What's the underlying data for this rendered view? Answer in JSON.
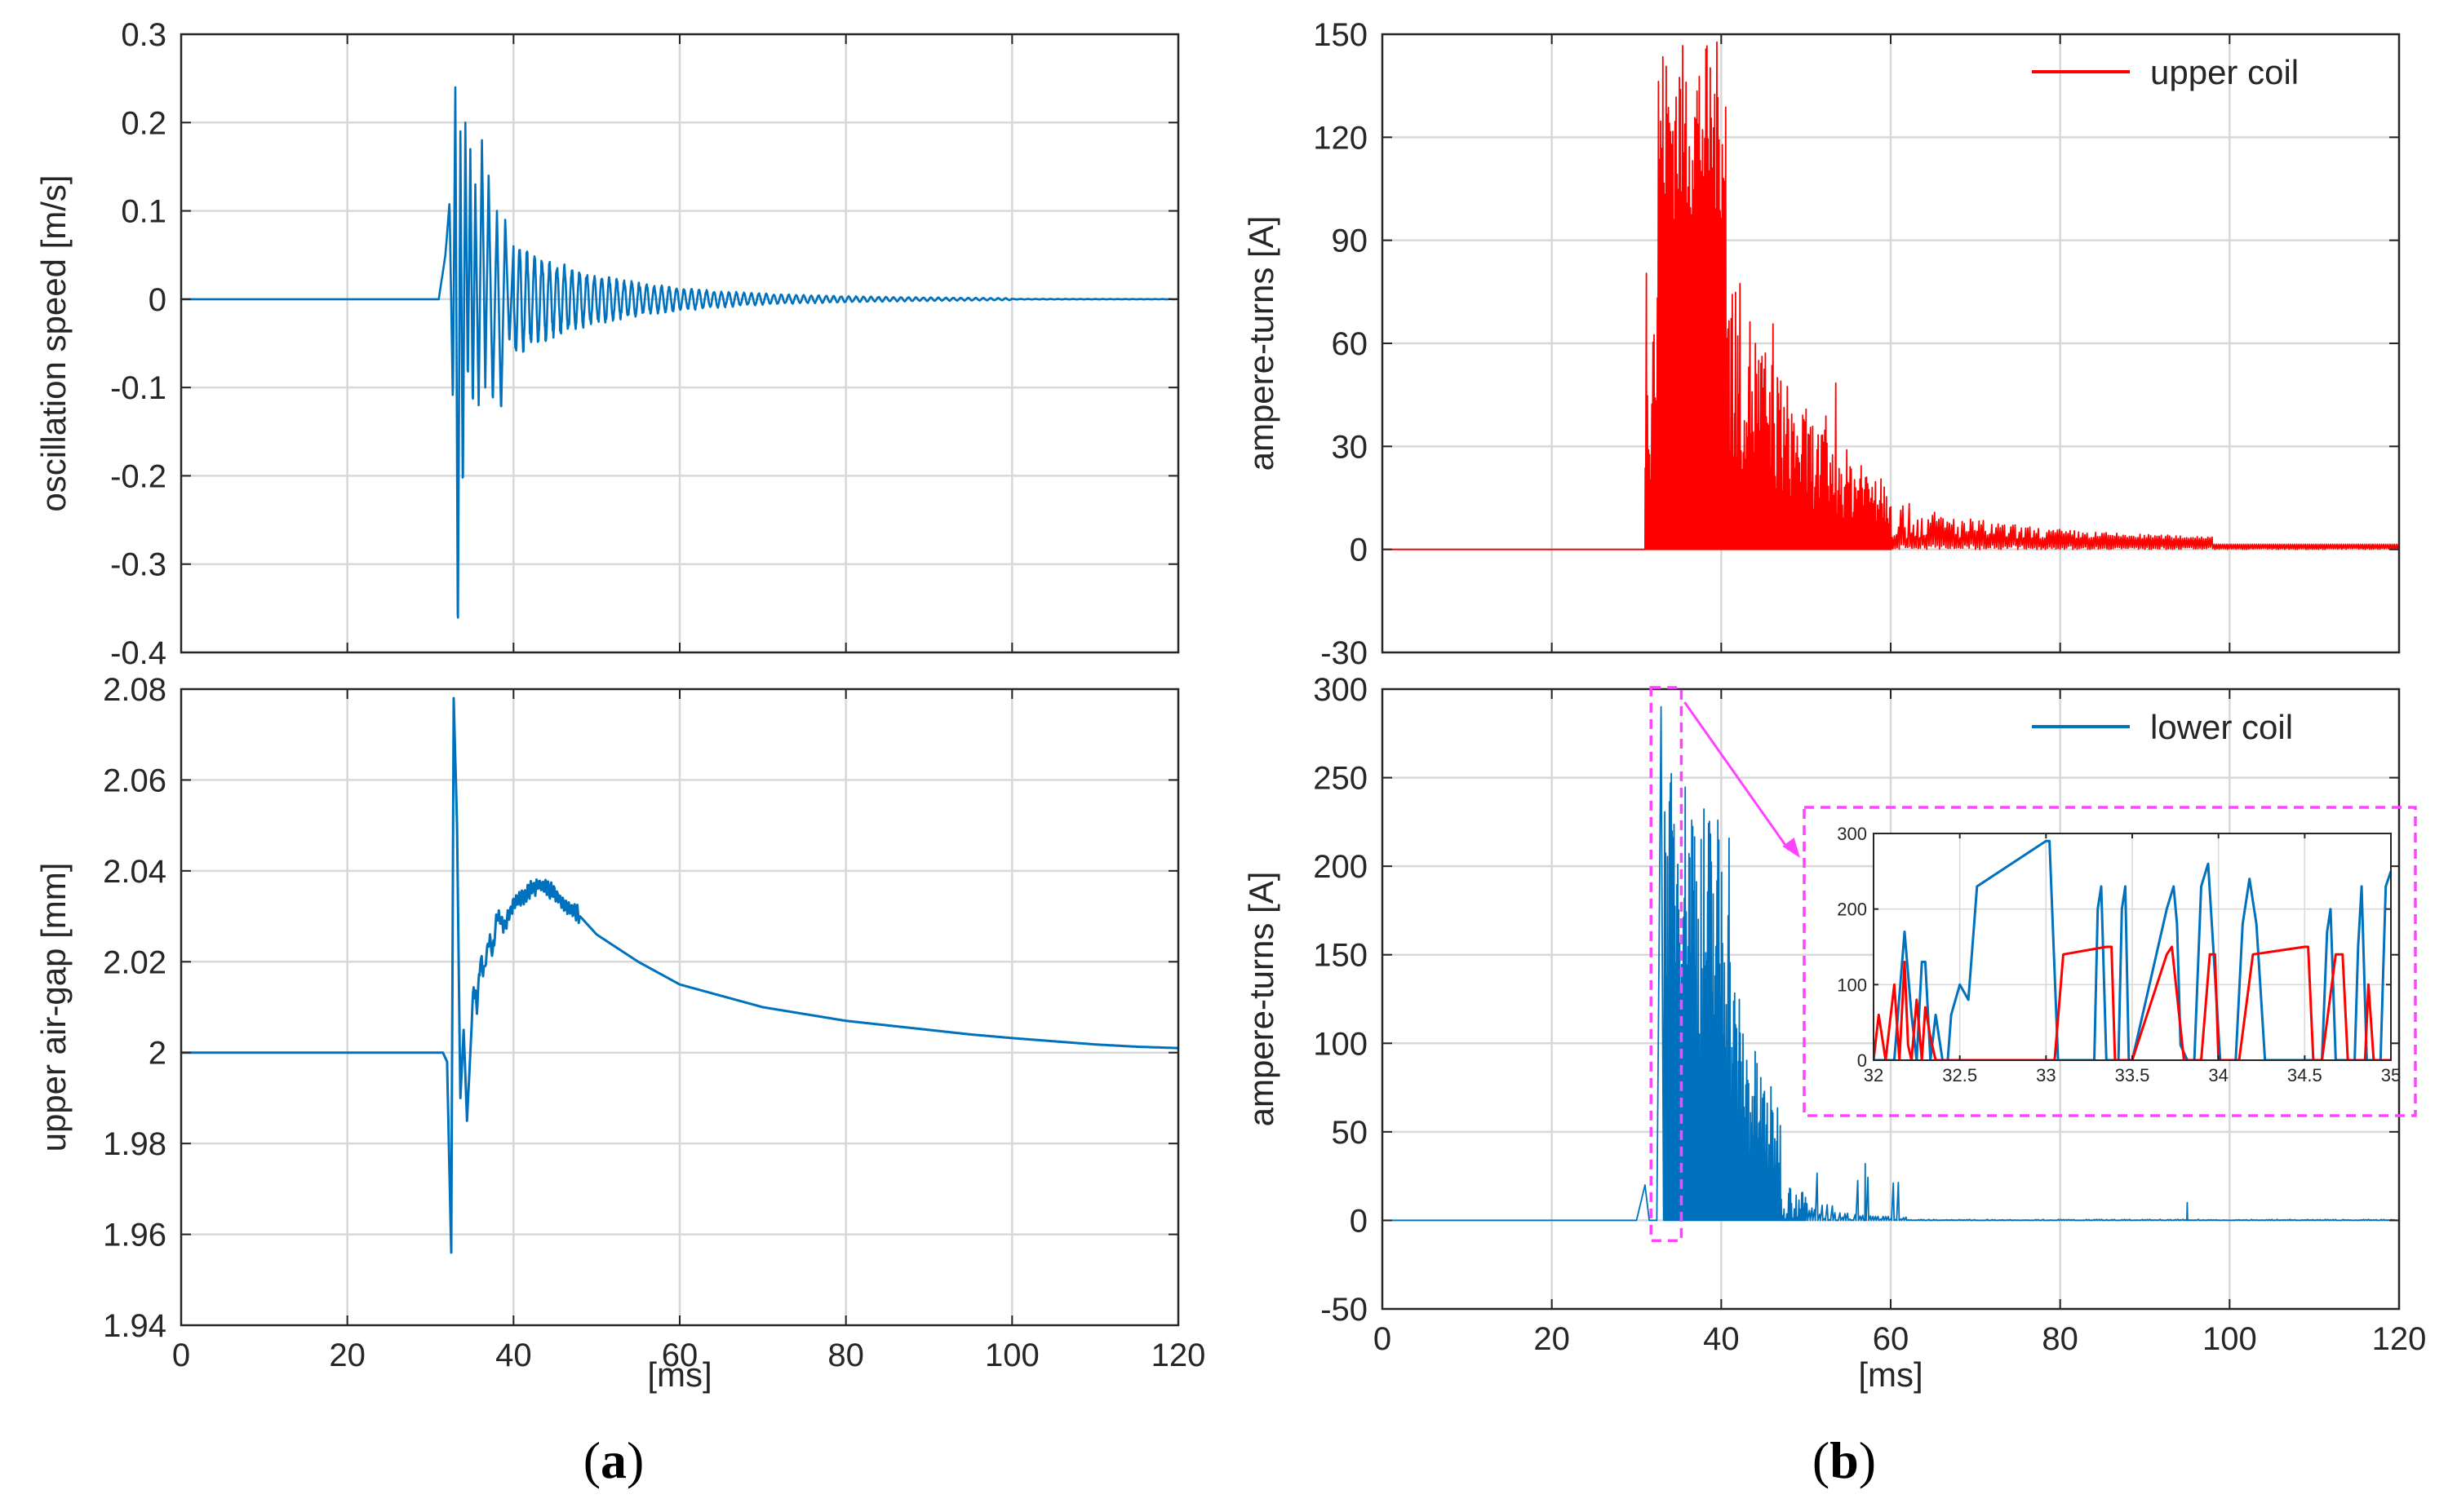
{
  "figure": {
    "panel_labels": [
      {
        "open": "(",
        "letter": "a",
        "close": ")"
      },
      {
        "open": "(",
        "letter": "b",
        "close": ")"
      }
    ],
    "colors": {
      "blue": "#0072BD",
      "red": "#FF0000",
      "magenta": "#FF44FF",
      "grid": "#d8d8d8",
      "axis": "#262626"
    }
  },
  "chart_data": [
    {
      "id": "speed",
      "type": "line",
      "panel": "a-top",
      "xlim": [
        0,
        120
      ],
      "ylim": [
        -0.4,
        0.3
      ],
      "xticks": [
        0,
        20,
        40,
        60,
        80,
        100,
        120
      ],
      "yticks": [
        -0.4,
        -0.3,
        -0.2,
        -0.1,
        0,
        0.1,
        0.2,
        0.3
      ],
      "ytick_labels": [
        "-0.4",
        "-0.3",
        "-0.2",
        "-0.1",
        "0",
        "0.1",
        "0.2",
        "0.3"
      ],
      "xtick_labels": [],
      "xlabel": "",
      "ylabel": "oscillation speed [m/s]",
      "grid": true,
      "series": [
        {
          "name": "oscillation speed",
          "color": "#0072BD",
          "signal": "damped_oscillation",
          "x": [
            0,
            31,
            31.8,
            32.3,
            32.7,
            33.0,
            33.3,
            33.6,
            33.9,
            34.2,
            34.5,
            34.8,
            35.1,
            35.4,
            35.8,
            36.2,
            36.6,
            37,
            37.5,
            38,
            38.5,
            39,
            39.5,
            40,
            41,
            42,
            43,
            45,
            47,
            50,
            55,
            60,
            70,
            80,
            90,
            100,
            120
          ],
          "values": [
            0,
            0,
            0.05,
            0.11,
            -0.12,
            0.24,
            -0.4,
            0.19,
            -0.23,
            0.2,
            -0.1,
            0.17,
            -0.13,
            0.13,
            -0.12,
            0.18,
            -0.1,
            0.14,
            -0.12,
            0.1,
            -0.13,
            0.09,
            -0.05,
            0.06,
            -0.04,
            0.04,
            -0.03,
            0.02,
            -0.015,
            0.01,
            0.008,
            0.005,
            0.003,
            0.002,
            0.001,
            0,
            0
          ]
        }
      ]
    },
    {
      "id": "airgap",
      "type": "line",
      "panel": "a-bottom",
      "xlim": [
        0,
        120
      ],
      "ylim": [
        1.94,
        2.08
      ],
      "xticks": [
        0,
        20,
        40,
        60,
        80,
        100,
        120
      ],
      "xtick_labels": [
        "0",
        "20",
        "40",
        "60",
        "80",
        "100",
        "120"
      ],
      "yticks": [
        1.94,
        1.96,
        1.98,
        2,
        2.02,
        2.04,
        2.06,
        2.08
      ],
      "ytick_labels": [
        "1.94",
        "1.96",
        "1.98",
        "2",
        "2.02",
        "2.04",
        "2.06",
        "2.08"
      ],
      "xlabel": "[ms]",
      "ylabel": "upper air-gap [mm]",
      "grid": true,
      "series": [
        {
          "name": "upper air-gap",
          "color": "#0072BD",
          "x": [
            0,
            31.5,
            32,
            32.5,
            32.8,
            33.2,
            33.6,
            34.0,
            34.4,
            34.8,
            35.2,
            35.6,
            36,
            36.5,
            37,
            37.5,
            38,
            39,
            40,
            41,
            42,
            43,
            44,
            45,
            46,
            48,
            50,
            55,
            60,
            65,
            70,
            75,
            80,
            85,
            90,
            95,
            100,
            105,
            110,
            115,
            120
          ],
          "values": [
            2.0,
            2.0,
            1.998,
            1.956,
            2.078,
            2.05,
            1.99,
            2.005,
            1.985,
            2.0,
            2.015,
            2.01,
            2.02,
            2.018,
            2.025,
            2.022,
            2.03,
            2.028,
            2.033,
            2.034,
            2.036,
            2.037,
            2.036,
            2.035,
            2.033,
            2.03,
            2.026,
            2.02,
            2.015,
            2.0125,
            2.01,
            2.0085,
            2.007,
            2.006,
            2.005,
            2.004,
            2.0032,
            2.0025,
            2.0018,
            2.0013,
            2.001
          ]
        }
      ]
    },
    {
      "id": "upper_coil",
      "type": "line",
      "panel": "b-top",
      "xlim": [
        0,
        120
      ],
      "ylim": [
        -30,
        150
      ],
      "xticks": [
        0,
        20,
        40,
        60,
        80,
        100,
        120
      ],
      "xtick_labels": [],
      "yticks": [
        -30,
        0,
        30,
        60,
        90,
        120,
        150
      ],
      "ytick_labels": [
        "-30",
        "0",
        "30",
        "60",
        "90",
        "120",
        "150"
      ],
      "xlabel": "",
      "ylabel": "ampere-turns [A]",
      "grid": true,
      "legend": {
        "label": "upper coil",
        "position": "top-right"
      },
      "series": [
        {
          "name": "upper coil",
          "color": "#FF0000",
          "signal": "pulse_train",
          "onset_ms": 31,
          "peak_window_ms": [
            32.5,
            40.5
          ],
          "peak": 148,
          "decay_end_ms": 98,
          "baseline": 0
        }
      ]
    },
    {
      "id": "lower_coil",
      "type": "line",
      "panel": "b-bottom",
      "xlim": [
        0,
        120
      ],
      "ylim": [
        -50,
        300
      ],
      "xticks": [
        0,
        20,
        40,
        60,
        80,
        100,
        120
      ],
      "xtick_labels": [
        "0",
        "20",
        "40",
        "60",
        "80",
        "100",
        "120"
      ],
      "yticks": [
        -50,
        0,
        50,
        100,
        150,
        200,
        250,
        300
      ],
      "ytick_labels": [
        "-50",
        "0",
        "50",
        "100",
        "150",
        "200",
        "250",
        "300"
      ],
      "xlabel": "[ms]",
      "ylabel": "ampere-turns [A]",
      "grid": true,
      "legend": {
        "label": "lower coil",
        "position": "top-right"
      },
      "highlight_window_ms": [
        32,
        35
      ],
      "series": [
        {
          "name": "lower coil",
          "color": "#0072BD",
          "signal": "pulse_train",
          "onset_ms": 31,
          "first_peak": 290,
          "decay_end_ms": 62,
          "late_spikes_ms": [
            57,
            95
          ],
          "baseline": 0
        }
      ]
    },
    {
      "id": "zoom_inset",
      "type": "line",
      "panel": "b-bottom-inset",
      "xlim": [
        32,
        35
      ],
      "ylim": [
        0,
        300
      ],
      "xticks": [
        32,
        32.5,
        33,
        33.5,
        34,
        34.5,
        35
      ],
      "xtick_labels": [
        "32",
        "32.5",
        "33",
        "33.5",
        "34",
        "34.5",
        "35"
      ],
      "yticks": [
        0,
        100,
        200,
        300
      ],
      "ytick_labels": [
        "0",
        "100",
        "200",
        "300"
      ],
      "grid": true,
      "series": [
        {
          "name": "lower coil",
          "color": "#0072BD",
          "x": [
            32,
            32.12,
            32.18,
            32.22,
            32.25,
            32.28,
            32.3,
            32.33,
            32.36,
            32.4,
            32.43,
            32.45,
            32.5,
            32.55,
            32.6,
            33.0,
            33.02,
            33.07,
            33.28,
            33.3,
            33.32,
            33.35,
            33.42,
            33.44,
            33.46,
            33.48,
            33.5,
            33.7,
            33.74,
            33.76,
            33.78,
            33.82,
            33.86,
            33.9,
            33.94,
            34.01,
            34.02,
            34.06,
            34.1,
            34.14,
            34.18,
            34.22,
            34.27,
            34.3,
            34.33,
            34.6,
            34.63,
            34.65,
            34.68,
            34.72,
            34.75,
            34.79,
            34.81,
            34.83,
            34.86,
            34.9,
            34.94,
            34.97,
            35
          ],
          "values": [
            0,
            0,
            170,
            60,
            0,
            130,
            130,
            0,
            60,
            0,
            0,
            60,
            100,
            80,
            230,
            290,
            290,
            0,
            0,
            200,
            230,
            0,
            0,
            200,
            230,
            0,
            0,
            200,
            230,
            180,
            20,
            0,
            0,
            230,
            260,
            0,
            0,
            0,
            0,
            180,
            240,
            180,
            0,
            0,
            0,
            0,
            170,
            200,
            0,
            0,
            0,
            0,
            150,
            230,
            0,
            0,
            0,
            230,
            250
          ]
        },
        {
          "name": "upper coil",
          "color": "#FF0000",
          "x": [
            32,
            32.03,
            32.07,
            32.1,
            32.12,
            32.15,
            32.18,
            32.2,
            32.22,
            32.25,
            32.28,
            32.3,
            32.33,
            32.36,
            32.4,
            32.45,
            32.5,
            32.6,
            33.0,
            33.05,
            33.1,
            33.35,
            33.38,
            33.4,
            33.45,
            33.5,
            33.7,
            33.73,
            33.8,
            33.9,
            33.95,
            33.98,
            34.0,
            34.05,
            34.08,
            34.12,
            34.2,
            34.5,
            34.52,
            34.55,
            34.6,
            34.68,
            34.72,
            34.75,
            34.8,
            34.85,
            34.87,
            34.9,
            35
          ],
          "values": [
            0,
            60,
            0,
            60,
            100,
            0,
            130,
            20,
            0,
            80,
            0,
            70,
            30,
            0,
            0,
            0,
            0,
            0,
            0,
            0,
            140,
            150,
            150,
            0,
            0,
            0,
            140,
            150,
            0,
            0,
            140,
            140,
            0,
            0,
            0,
            0,
            140,
            150,
            150,
            0,
            0,
            140,
            140,
            0,
            0,
            0,
            100,
            0,
            0
          ]
        }
      ]
    }
  ]
}
